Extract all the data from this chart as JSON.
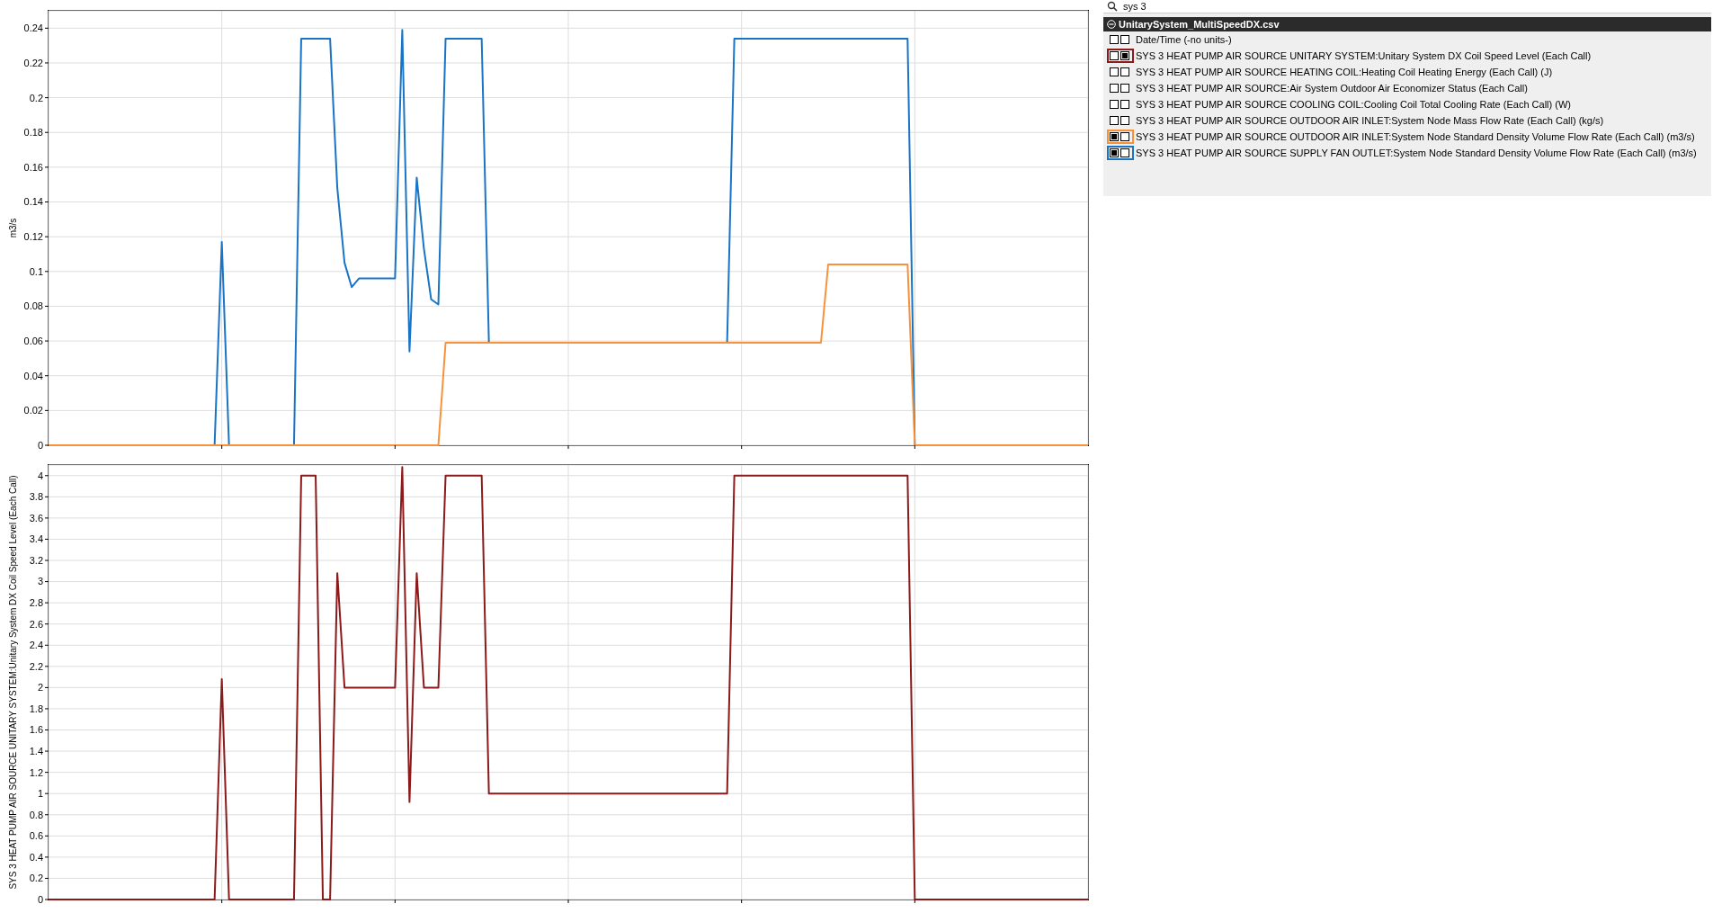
{
  "chart_data": [
    {
      "type": "line",
      "ylabel": "m3/s",
      "categories": [
        null,
        null,
        null,
        null,
        null,
        null,
        null,
        null,
        null,
        null,
        null,
        null,
        null,
        null,
        null,
        null,
        null,
        null,
        null,
        null,
        null,
        null,
        null,
        null,
        null,
        null,
        null,
        null,
        null,
        null,
        null,
        null,
        null,
        null,
        null,
        null,
        null,
        null,
        null,
        null,
        null,
        null,
        null,
        null,
        null,
        null,
        null,
        null,
        null,
        null,
        null,
        null,
        null,
        null,
        null,
        null,
        null,
        null,
        null,
        null,
        null,
        null,
        null,
        null,
        null,
        null,
        null,
        null,
        null,
        null,
        null,
        null,
        null,
        null,
        null,
        null,
        null,
        null,
        null,
        null,
        null,
        null,
        null,
        null,
        null,
        null,
        null,
        null,
        null,
        null,
        null,
        null,
        null,
        null,
        null,
        null,
        null,
        null,
        null,
        null,
        null,
        null,
        null,
        null,
        null,
        null,
        null,
        null,
        null,
        null,
        null,
        null,
        null,
        null,
        null,
        null,
        null,
        null,
        null,
        null,
        null,
        null,
        null,
        null,
        null,
        null,
        null,
        null,
        null,
        null,
        null,
        null,
        null,
        null,
        null,
        null,
        null,
        null,
        null,
        null,
        null,
        null,
        null,
        null,
        null
      ],
      "ylim": [
        0,
        0.25
      ],
      "yticks": [
        0,
        0.02,
        0.04,
        0.06,
        0.08,
        0.1,
        0.12,
        0.14,
        0.16,
        0.18,
        0.2,
        0.22,
        0.24
      ],
      "grid": true,
      "tick_labels": "y",
      "marker": "none",
      "line_style": "solid",
      "series": [
        {
          "color": "#1a74c6",
          "values": [
            null,
            null,
            null,
            null,
            null,
            null,
            null,
            null,
            null,
            null,
            null,
            null,
            null,
            null,
            null,
            null,
            null,
            null,
            null,
            null,
            null,
            null,
            null,
            0,
            0.117,
            0,
            null,
            null,
            null,
            null,
            null,
            null,
            null,
            null,
            0,
            0.234,
            0.234,
            0.234,
            0.234,
            0.234,
            0.148,
            0.105,
            0.091,
            0.096,
            0.096,
            0.096,
            0.096,
            0.096,
            0.096,
            0.239,
            0.054,
            0.154,
            0.113,
            0.084,
            0.081,
            0.234,
            0.234,
            0.234,
            0.234,
            0.234,
            0.234,
            0.059,
            null,
            null,
            null,
            null,
            null,
            null,
            null,
            null,
            null,
            null,
            null,
            null,
            null,
            null,
            null,
            null,
            null,
            null,
            null,
            null,
            null,
            null,
            null,
            null,
            null,
            null,
            null,
            null,
            null,
            null,
            null,
            null,
            0.059,
            0.234,
            0.234,
            0.234,
            0.234,
            0.234,
            0.234,
            0.234,
            0.234,
            0.234,
            0.234,
            0.234,
            0.234,
            0.234,
            0.234,
            0.234,
            0.234,
            0.234,
            0.234,
            0.234,
            0.234,
            0.234,
            0.234,
            0.234,
            0.234,
            0.234,
            0,
            null,
            null,
            null,
            null,
            null,
            null,
            null,
            null,
            null,
            null,
            null,
            null,
            null,
            null,
            null,
            null,
            null,
            null,
            null,
            null,
            null,
            null,
            null,
            null
          ]
        },
        {
          "color": "#f7923a",
          "values": [
            0,
            0,
            0,
            0,
            0,
            0,
            0,
            0,
            0,
            0,
            0,
            0,
            0,
            0,
            0,
            0,
            0,
            0,
            0,
            0,
            0,
            0,
            0,
            0,
            0,
            0,
            0,
            0,
            0,
            0,
            0,
            0,
            0,
            0,
            0,
            0,
            0,
            0,
            0,
            0,
            0,
            0,
            0,
            0,
            0,
            0,
            0,
            0,
            0,
            0,
            0,
            0,
            0,
            0,
            0,
            0.059,
            0.059,
            0.059,
            0.059,
            0.059,
            0.059,
            0.059,
            0.059,
            0.059,
            0.059,
            0.059,
            0.059,
            0.059,
            0.059,
            0.059,
            0.059,
            0.059,
            0.059,
            0.059,
            0.059,
            0.059,
            0.059,
            0.059,
            0.059,
            0.059,
            0.059,
            0.059,
            0.059,
            0.059,
            0.059,
            0.059,
            0.059,
            0.059,
            0.059,
            0.059,
            0.059,
            0.059,
            0.059,
            0.059,
            0.059,
            0.059,
            0.059,
            0.059,
            0.059,
            0.059,
            0.059,
            0.059,
            0.059,
            0.059,
            0.059,
            0.059,
            0.059,
            0.059,
            0.104,
            0.104,
            0.104,
            0.104,
            0.104,
            0.104,
            0.104,
            0.104,
            0.104,
            0.104,
            0.104,
            0.104,
            0,
            0,
            0,
            0,
            0,
            0,
            0,
            0,
            0,
            0,
            0,
            0,
            0,
            0,
            0,
            0,
            0,
            0,
            0,
            0,
            0,
            0,
            0,
            0,
            0
          ]
        }
      ]
    },
    {
      "type": "other",
      "title": "UnitarySystem_MultiSpeedDX.csv",
      "subtitle": "sys 3",
      "annotations": [
        "Date/Time (-no units-)",
        "SYS 3 HEAT PUMP AIR SOURCE UNITARY SYSTEM:Unitary System DX Coil Speed Level (Each Call)",
        "SYS 3 HEAT PUMP AIR SOURCE HEATING COIL:Heating Coil Heating Energy (Each Call) (J)",
        "SYS 3 HEAT PUMP AIR SOURCE:Air System Outdoor Air Economizer Status (Each Call)",
        "SYS 3 HEAT PUMP AIR SOURCE COOLING COIL:Cooling Coil Total Cooling Rate (Each Call) (W)",
        "SYS 3 HEAT PUMP AIR SOURCE OUTDOOR AIR INLET:System Node Mass Flow Rate (Each Call) (kg/s)",
        "SYS 3 HEAT PUMP AIR SOURCE OUTDOOR AIR INLET:System Node Standard Density Volume Flow Rate (Each Call) (m3/s)",
        "SYS 3 HEAT PUMP AIR SOURCE SUPPLY FAN OUTLET:System Node Standard Density Volume Flow Rate (Each Call)  (m3/s)"
      ],
      "colors": [
        null,
        "#8b1a1a",
        null,
        null,
        null,
        null,
        "#f7923a",
        "#1a74c6"
      ]
    },
    {
      "type": "line",
      "ylabel": "SYS 3 HEAT PUMP AIR SOURCE UNITARY SYSTEM:Unitary System DX Coil Speed Level (Each Call)",
      "categories": [
        null,
        null,
        null,
        null,
        null,
        null,
        null,
        null,
        null,
        null,
        null,
        null,
        null,
        null,
        null,
        null,
        null,
        null,
        null,
        null,
        null,
        null,
        null,
        null,
        null,
        null,
        null,
        null,
        null,
        null,
        null,
        null,
        null,
        null,
        null,
        null,
        null,
        null,
        null,
        null,
        null,
        null,
        null,
        null,
        null,
        null,
        null,
        null,
        null,
        null,
        null,
        null,
        null,
        null,
        null,
        null,
        null,
        null,
        null,
        null,
        null,
        null,
        null,
        null,
        null,
        null,
        null,
        null,
        null,
        null,
        null,
        null,
        null,
        null,
        null,
        null,
        null,
        null,
        null,
        null,
        null,
        null,
        null,
        null,
        null,
        null,
        null,
        null,
        null,
        null,
        null,
        null,
        null,
        null,
        null,
        null,
        null,
        null,
        null,
        null,
        null,
        null,
        null,
        null,
        null,
        null,
        null,
        null,
        null,
        null,
        null,
        null,
        null,
        null,
        null,
        null,
        null,
        null,
        null,
        null,
        null,
        null,
        null,
        null,
        null,
        null,
        null,
        null,
        null,
        null,
        null,
        null,
        null,
        null,
        null,
        null,
        null,
        null,
        null,
        null,
        null,
        null,
        null,
        null,
        null
      ],
      "ylim": [
        0,
        4.1
      ],
      "yticks": [
        0,
        0.2,
        0.4,
        0.6,
        0.8,
        1,
        1.2,
        1.4,
        1.6,
        1.8,
        2,
        2.2,
        2.4,
        2.6,
        2.8,
        3,
        3.2,
        3.4,
        3.6,
        3.8,
        4
      ],
      "grid": true,
      "tick_labels": "y",
      "marker": "none",
      "line_style": "solid",
      "series": [
        {
          "color": "#8b1a1a",
          "values": [
            0,
            0,
            0,
            0,
            0,
            0,
            0,
            0,
            0,
            0,
            0,
            0,
            0,
            0,
            0,
            0,
            0,
            0,
            0,
            0,
            0,
            0,
            0,
            0,
            2.08,
            0,
            0,
            0,
            0,
            0,
            0,
            0,
            0,
            0,
            0,
            4,
            4,
            4,
            0,
            0,
            3.08,
            2,
            2,
            2,
            2,
            2,
            2,
            2,
            2,
            4.08,
            0.92,
            3.08,
            2,
            2,
            2,
            4,
            4,
            4,
            4,
            4,
            4,
            1,
            1,
            1,
            1,
            1,
            1,
            1,
            1,
            1,
            1,
            1,
            1,
            1,
            1,
            1,
            1,
            1,
            1,
            1,
            1,
            1,
            1,
            1,
            1,
            1,
            1,
            1,
            1,
            1,
            1,
            1,
            1,
            1,
            1,
            4,
            4,
            4,
            4,
            4,
            4,
            4,
            4,
            4,
            4,
            4,
            4,
            4,
            4,
            4,
            4,
            4,
            4,
            4,
            4,
            4,
            4,
            4,
            4,
            4,
            0,
            0,
            0,
            0,
            0,
            0,
            0,
            0,
            0,
            0,
            0,
            0,
            0,
            0,
            0,
            0,
            0,
            0,
            0,
            0,
            0,
            0,
            0,
            0,
            0
          ]
        }
      ]
    }
  ]
}
